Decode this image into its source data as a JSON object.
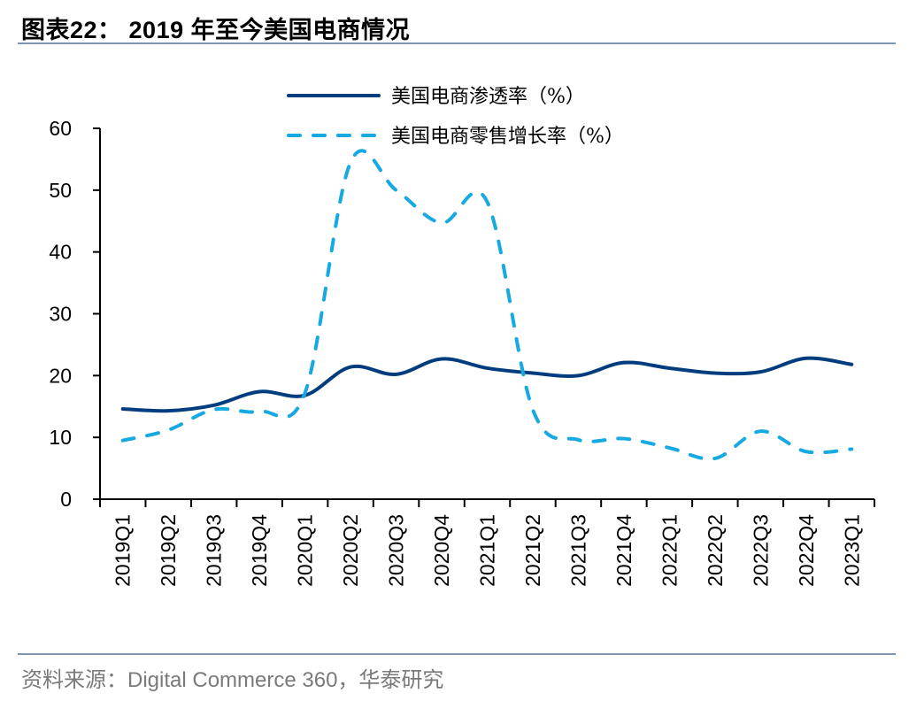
{
  "header": {
    "title": "图表22：  2019 年至今美国电商情况"
  },
  "footer": {
    "source": "资料来源：Digital Commerce 360，华泰研究"
  },
  "chart_data": {
    "type": "line",
    "title": "2019 年至今美国电商情况",
    "xlabel": "",
    "ylabel": "",
    "ylim": [
      0,
      60
    ],
    "yticks": [
      0,
      10,
      20,
      30,
      40,
      50,
      60
    ],
    "grid": false,
    "legend_position": "top-center",
    "categories": [
      "2019Q1",
      "2019Q2",
      "2019Q3",
      "2019Q4",
      "2020Q1",
      "2020Q2",
      "2020Q3",
      "2020Q4",
      "2021Q1",
      "2021Q2",
      "2021Q3",
      "2021Q4",
      "2022Q1",
      "2022Q2",
      "2022Q3",
      "2022Q4",
      "2023Q1"
    ],
    "series": [
      {
        "name": "美国电商渗透率（%）",
        "style": "solid",
        "color": "#003c7e",
        "values": [
          14.6,
          14.3,
          15.2,
          17.4,
          16.8,
          21.4,
          20.2,
          22.7,
          21.2,
          20.4,
          20.0,
          22.1,
          21.2,
          20.4,
          20.6,
          22.8,
          21.8
        ]
      },
      {
        "name": "美国电商零售增长率（%）",
        "style": "dashed",
        "color": "#17a9e1",
        "values": [
          9.5,
          11.2,
          14.5,
          14.2,
          17.2,
          54.5,
          50.0,
          44.7,
          48.1,
          14.5,
          9.6,
          9.8,
          8.3,
          6.6,
          11.0,
          7.7,
          8.1
        ]
      }
    ]
  }
}
